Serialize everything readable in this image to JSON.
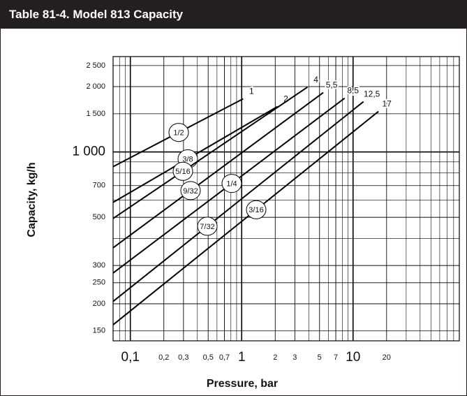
{
  "chart_data": {
    "type": "line",
    "title": "Table 81-4. Model 813 Capacity",
    "x_label": "Pressure, bar",
    "y_label": "Capacity, kg/h",
    "log_x": true,
    "log_y": true,
    "grid": true,
    "xlim": [
      0.07,
      90
    ],
    "ylim": [
      135,
      2750
    ],
    "xticks": [
      {
        "value": 0.1,
        "label": "0,1"
      },
      {
        "value": 0.2,
        "label": "0,2"
      },
      {
        "value": 0.3,
        "label": "0,3"
      },
      {
        "value": 0.5,
        "label": "0,5"
      },
      {
        "value": 0.7,
        "label": "0,7"
      },
      1,
      2,
      3,
      5,
      7,
      10,
      20
    ],
    "yticks": [
      150,
      200,
      250,
      300,
      500,
      700,
      {
        "value": 1000,
        "label": "1 000"
      },
      {
        "value": 1500,
        "label": "1 500"
      },
      {
        "value": 2000,
        "label": "2 000"
      },
      {
        "value": 2500,
        "label": "2 500"
      }
    ],
    "color": "#000000",
    "series": [
      {
        "name": "1/2",
        "end_label": "1",
        "x": [
          0.07,
          1.03
        ],
        "values": [
          856,
          1757
        ]
      },
      {
        "name": "3/8",
        "end_label": "2",
        "x": [
          0.07,
          2.1
        ],
        "values": [
          586,
          1620
        ]
      },
      {
        "name": "5/16",
        "end_label": "4",
        "x": [
          0.07,
          3.9
        ],
        "values": [
          494,
          1990
        ]
      },
      {
        "name": "9/32",
        "end_label": "5,5",
        "x": [
          0.07,
          5.4
        ],
        "values": [
          362,
          1877
        ]
      },
      {
        "name": "1/4",
        "end_label": "8,5",
        "x": [
          0.07,
          8.4
        ],
        "values": [
          277,
          1769
        ]
      },
      {
        "name": "7/32",
        "end_label": "12,5",
        "x": [
          0.07,
          12.4
        ],
        "values": [
          205,
          1705
        ]
      },
      {
        "name": "3/16",
        "end_label": "17",
        "x": [
          0.07,
          16.9
        ],
        "values": [
          160,
          1537
        ]
      }
    ]
  }
}
